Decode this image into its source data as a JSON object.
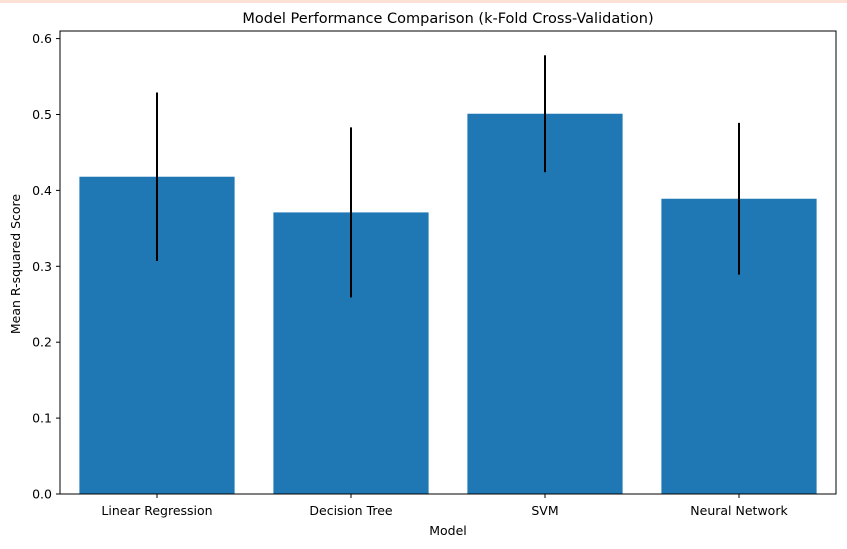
{
  "chart_data": {
    "type": "bar",
    "title": "Model Performance Comparison (k-Fold Cross-Validation)",
    "xlabel": "Model",
    "ylabel": "Mean R-squared Score",
    "categories": [
      "Linear Regression",
      "Decision Tree",
      "SVM",
      "Neural Network"
    ],
    "values": [
      0.418,
      0.371,
      0.501,
      0.389
    ],
    "error": [
      0.111,
      0.112,
      0.077,
      0.1
    ],
    "ylim": [
      0,
      0.61
    ],
    "yticks": [
      "0.0",
      "0.1",
      "0.2",
      "0.3",
      "0.4",
      "0.5",
      "0.6"
    ],
    "grid": false,
    "legend": "none",
    "colors": {
      "bar": "#1f77b4",
      "errorbar": "#000000",
      "axis": "#000000"
    }
  }
}
